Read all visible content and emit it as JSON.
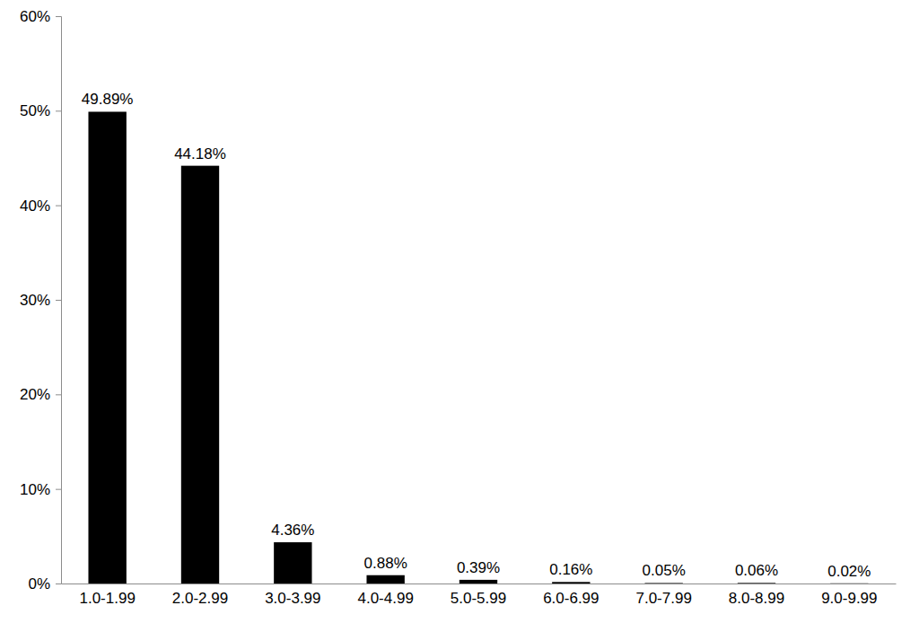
{
  "chart_data": {
    "type": "bar",
    "categories": [
      "1.0-1.99",
      "2.0-2.99",
      "3.0-3.99",
      "4.0-4.99",
      "5.0-5.99",
      "6.0-6.99",
      "7.0-7.99",
      "8.0-8.99",
      "9.0-9.99"
    ],
    "values": [
      49.89,
      44.18,
      4.36,
      0.88,
      0.39,
      0.16,
      0.05,
      0.06,
      0.02
    ],
    "value_labels": [
      "49.89%",
      "44.18%",
      "4.36%",
      "0.88%",
      "0.39%",
      "0.16%",
      "0.05%",
      "0.06%",
      "0.02%"
    ],
    "color": "#000000",
    "ylim": [
      0,
      60
    ],
    "yticks": [
      {
        "value": 0,
        "label": "0%"
      },
      {
        "value": 10,
        "label": "10%"
      },
      {
        "value": 20,
        "label": "20%"
      },
      {
        "value": 30,
        "label": "30%"
      },
      {
        "value": 40,
        "label": "40%"
      },
      {
        "value": 50,
        "label": "50%"
      },
      {
        "value": 60,
        "label": "60%"
      }
    ],
    "grid": false,
    "data_labels": true
  }
}
